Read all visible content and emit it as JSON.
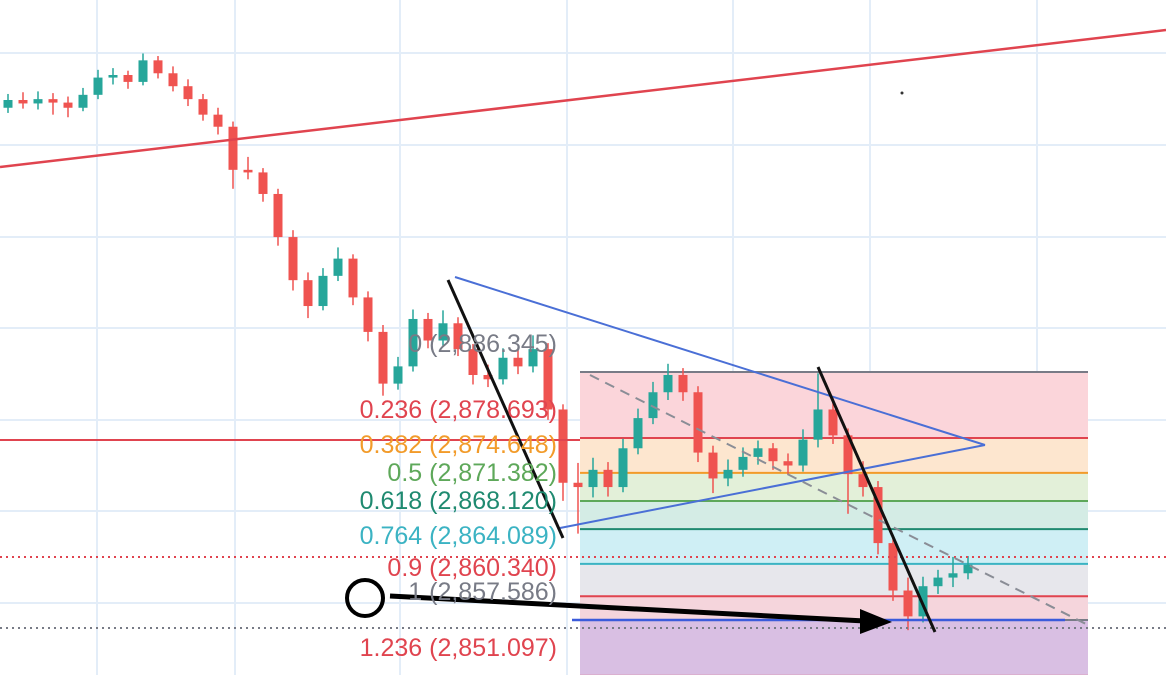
{
  "chart_data": {
    "type": "candlestick",
    "ylim": [
      2851.2,
      2929.5
    ],
    "up_color": "#26a69a",
    "down_color": "#ef5350",
    "open": [
      2917.0,
      2917.9,
      2917.5,
      2918.0,
      2917.6,
      2917.0,
      2918.5,
      2920.5,
      2920.8,
      2920.0,
      2922.5,
      2921.0,
      2919.5,
      2918.0,
      2916.2,
      2914.8,
      2909.8,
      2909.5,
      2907.0,
      2902.0,
      2897.0,
      2894.0,
      2897.5,
      2899.5,
      2895.0,
      2891.0,
      2885.0,
      2887.0,
      2892.5,
      2890.0,
      2892.0,
      2889.0,
      2886.0,
      2885.5,
      2888.0,
      2887.0,
      2889.0,
      2882.0,
      2873.5,
      2873.0,
      2875.0,
      2873.0,
      2877.5,
      2881.0,
      2884.0,
      2886.0,
      2884.0,
      2877.0,
      2874.0,
      2875.0,
      2876.5,
      2877.5,
      2876.0,
      2875.5,
      2878.5,
      2882.0,
      2879.0,
      2874.5,
      2873.0,
      2866.5,
      2861.0,
      2858.0,
      2861.5,
      2862.5,
      2863.0
    ],
    "high": [
      2918.6,
      2918.8,
      2918.9,
      2918.7,
      2918.3,
      2919.3,
      2921.4,
      2921.6,
      2921.3,
      2923.3,
      2923.0,
      2921.8,
      2920.3,
      2918.6,
      2917.0,
      2915.4,
      2911.3,
      2910.0,
      2907.6,
      2902.8,
      2897.9,
      2898.4,
      2900.8,
      2900.0,
      2895.7,
      2891.8,
      2888.1,
      2893.6,
      2893.2,
      2893.5,
      2892.7,
      2889.6,
      2887.2,
      2889.1,
      2888.9,
      2890.6,
      2889.7,
      2882.6,
      2875.8,
      2876.4,
      2875.9,
      2878.6,
      2882.1,
      2885.2,
      2887.3,
      2886.8,
      2884.7,
      2877.8,
      2876.2,
      2877.6,
      2878.4,
      2878.1,
      2876.9,
      2879.7,
      2886.2,
      2883.4,
      2879.8,
      2876.0,
      2873.7,
      2867.3,
      2862.5,
      2862.6,
      2863.4,
      2864.9,
      2865.0
    ],
    "low": [
      2916.4,
      2916.9,
      2916.8,
      2916.2,
      2915.9,
      2916.6,
      2918.0,
      2919.7,
      2919.2,
      2919.6,
      2920.4,
      2918.9,
      2917.2,
      2915.5,
      2913.9,
      2907.6,
      2908.7,
      2906.1,
      2901.0,
      2895.8,
      2892.6,
      2893.5,
      2896.9,
      2894.1,
      2889.9,
      2883.6,
      2884.3,
      2886.4,
      2889.1,
      2889.4,
      2888.2,
      2884.9,
      2884.6,
      2884.9,
      2886.1,
      2886.3,
      2880.8,
      2871.4,
      2867.6,
      2871.8,
      2871.9,
      2872.4,
      2876.8,
      2880.3,
      2883.1,
      2883.0,
      2875.9,
      2872.3,
      2873.1,
      2874.2,
      2875.6,
      2875.0,
      2874.4,
      2874.8,
      2877.6,
      2878.0,
      2869.9,
      2871.9,
      2865.2,
      2859.8,
      2856.4,
      2857.3,
      2860.6,
      2861.4,
      2862.3
    ],
    "close": [
      2917.9,
      2917.5,
      2918.0,
      2917.6,
      2917.0,
      2918.5,
      2920.5,
      2920.8,
      2920.0,
      2922.5,
      2921.0,
      2919.5,
      2918.0,
      2916.2,
      2914.8,
      2909.8,
      2909.5,
      2907.0,
      2902.0,
      2897.0,
      2894.0,
      2897.5,
      2899.5,
      2895.0,
      2891.0,
      2885.0,
      2887.0,
      2892.5,
      2890.0,
      2892.0,
      2889.0,
      2886.0,
      2885.5,
      2888.0,
      2887.0,
      2889.0,
      2882.0,
      2873.5,
      2873.0,
      2875.0,
      2873.0,
      2877.5,
      2881.0,
      2884.0,
      2886.0,
      2884.0,
      2877.0,
      2874.0,
      2875.0,
      2876.5,
      2877.5,
      2876.0,
      2875.5,
      2878.5,
      2882.0,
      2879.0,
      2874.5,
      2873.0,
      2866.5,
      2861.0,
      2858.0,
      2861.5,
      2862.5,
      2863.0,
      2864.0
    ],
    "fib_levels": [
      {
        "value": 2886.345,
        "label": "0 (2,886.345)",
        "color": "#787b86",
        "fill": "#fbd5da"
      },
      {
        "value": 2878.693,
        "label": "0.236 (2,878.693)",
        "color": "#e0444f",
        "fill": "#fde6cf"
      },
      {
        "value": 2874.648,
        "label": "0.382 (2,874.648)",
        "color": "#f29b2a",
        "fill": "#e3f0d9"
      },
      {
        "value": 2871.382,
        "label": "0.5 (2,871.382)",
        "color": "#5ea85a",
        "fill": "#d4ece5"
      },
      {
        "value": 2868.12,
        "label": "0.618 (2,868.120)",
        "color": "#1f8a70",
        "fill": "#cfeff5"
      },
      {
        "value": 2864.089,
        "label": "0.764 (2,864.089)",
        "color": "#3bb3c3",
        "fill": "#e7e7ec"
      },
      {
        "value": 2860.34,
        "label": "0.9 (2,860.340)",
        "color": "#e0444f",
        "fill": "#f5d5dc"
      },
      {
        "value": 2857.586,
        "label": "1 (2,857.586)",
        "color": "#787b86",
        "fill": "#d9bfe3"
      },
      {
        "value": 2851.097,
        "label": "1.236 (2,851.097)",
        "color": "#e0444f"
      }
    ]
  }
}
